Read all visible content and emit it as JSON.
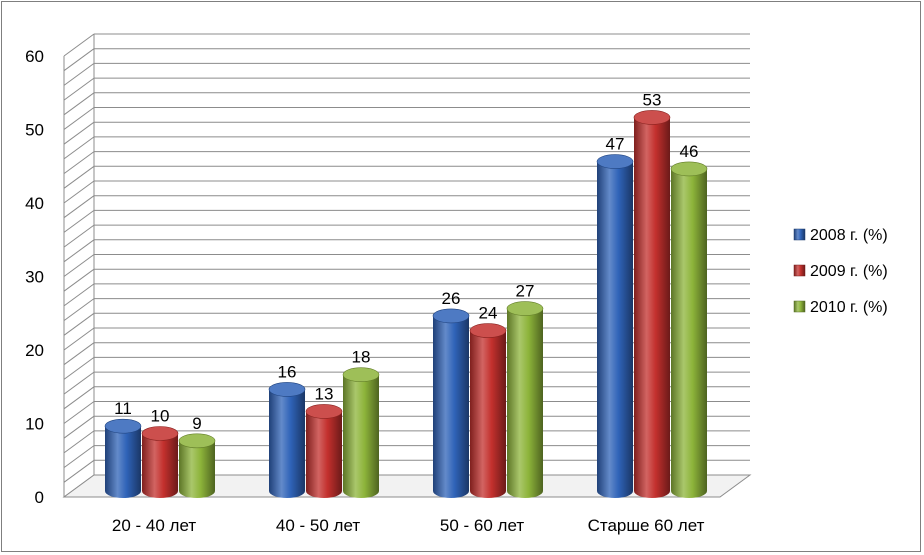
{
  "chart_data": {
    "type": "bar",
    "title": "",
    "xlabel": "",
    "ylabel": "",
    "categories": [
      "20 - 40 лет",
      "40 - 50 лет",
      "50 - 60 лет",
      "Старше 60 лет"
    ],
    "series": [
      {
        "name": "2008 г. (%)",
        "values": [
          11,
          16,
          26,
          47
        ],
        "color": "#2f63b8"
      },
      {
        "name": "2009 г. (%)",
        "values": [
          10,
          13,
          24,
          53
        ],
        "color": "#c3302d"
      },
      {
        "name": "2010 г. (%)",
        "values": [
          9,
          18,
          27,
          46
        ],
        "color": "#8db43a"
      }
    ],
    "ylim": [
      0,
      60
    ],
    "yticks": [
      0,
      10,
      20,
      30,
      40,
      50,
      60
    ],
    "minor_grid_step": 2,
    "grid": true,
    "legend_position": "right",
    "three_d": true
  }
}
